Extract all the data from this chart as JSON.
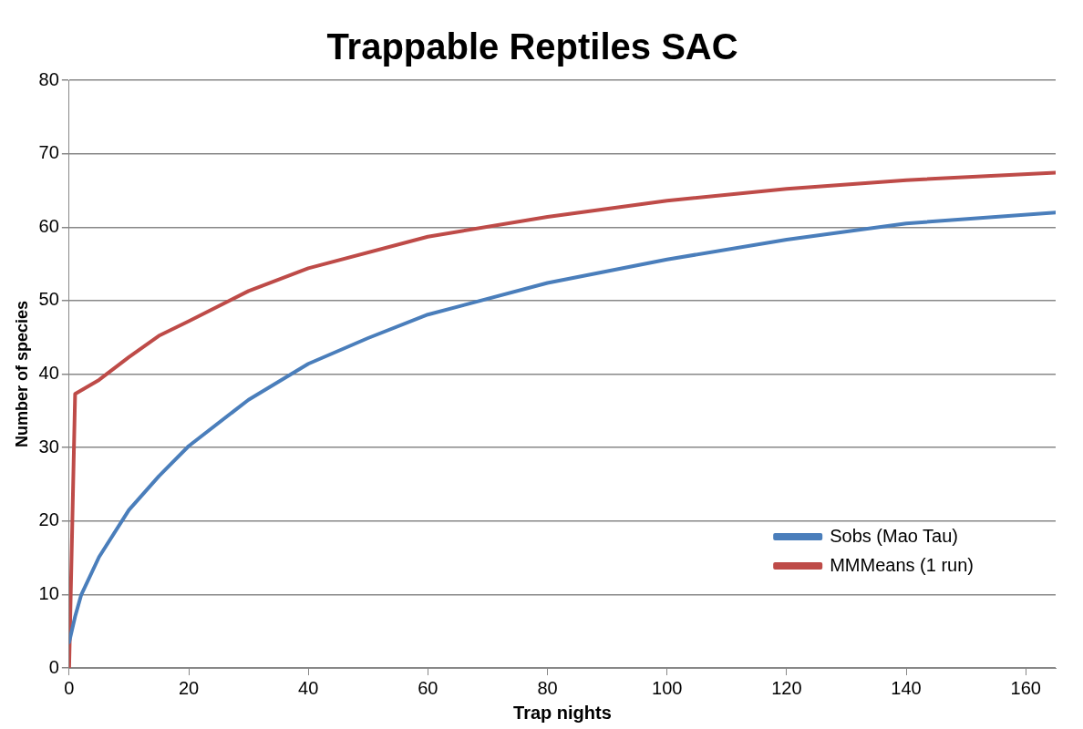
{
  "chart_data": {
    "type": "line",
    "title": "Trappable Reptiles SAC",
    "xlabel": "Trap nights",
    "ylabel": "Number of species",
    "xlim": [
      0,
      165
    ],
    "xticks": [
      0,
      20,
      40,
      60,
      80,
      100,
      120,
      140,
      160
    ],
    "ylim": [
      0,
      80
    ],
    "yticks": [
      0,
      10,
      20,
      30,
      40,
      50,
      60,
      70,
      80
    ],
    "grid": "y",
    "legend": "bottom right",
    "marker": "none",
    "series": [
      {
        "name": "Sobs (Mao Tau)",
        "color": "#4a7ebb",
        "x": [
          0,
          1,
          2,
          5,
          10,
          15,
          20,
          30,
          40,
          50,
          60,
          80,
          100,
          120,
          140,
          165
        ],
        "values": [
          3.5,
          7,
          9.9,
          15.1,
          21.5,
          26.1,
          30.2,
          36.5,
          41.4,
          44.9,
          48.1,
          52.4,
          55.6,
          58.3,
          60.5,
          62
        ]
      },
      {
        "name": "MMMeans (1 run)",
        "color": "#be4b48",
        "x": [
          0,
          1,
          5,
          10,
          15,
          20,
          30,
          40,
          60,
          80,
          100,
          120,
          140,
          165
        ],
        "values": [
          0,
          37.3,
          39.2,
          42.3,
          45.2,
          47.2,
          51.3,
          54.4,
          58.7,
          61.4,
          63.6,
          65.2,
          66.4,
          67.4
        ]
      }
    ]
  }
}
